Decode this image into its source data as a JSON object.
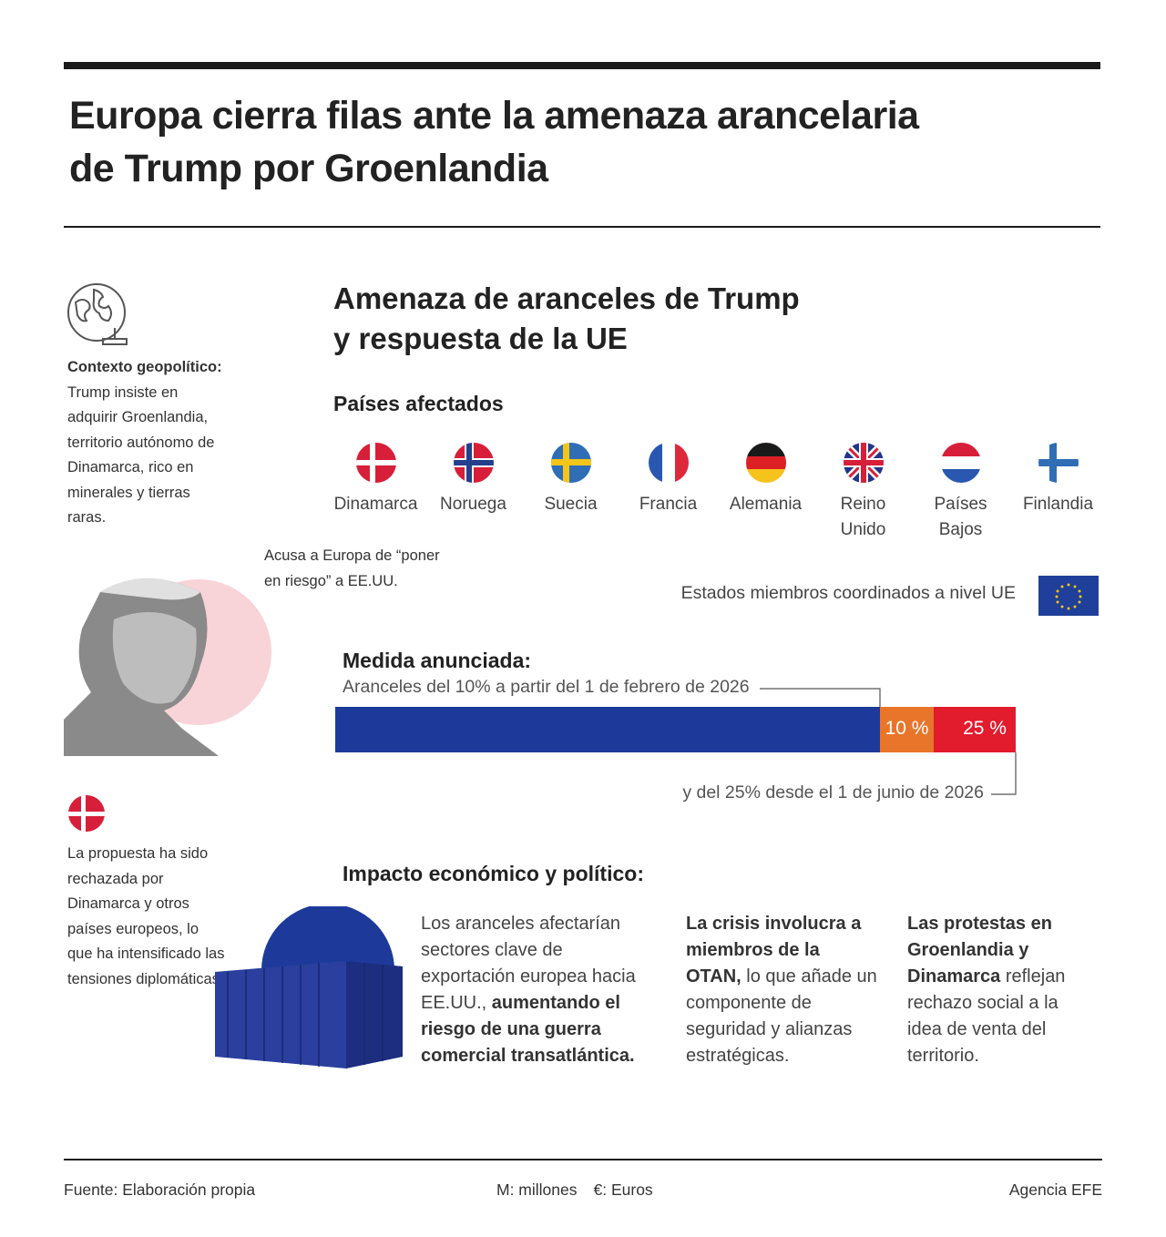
{
  "header": {
    "title_lines": [
      "Europa cierra filas ante la amenaza arancelaria",
      "de Trump por Groenlandia"
    ]
  },
  "sidebar": {
    "context_label": "Contexto geopolítico:",
    "context_text": "Trump insiste en adquirir Groenlandia, territorio autónomo de Dinamarca, rico en minerales y tierras raras.",
    "quote": "Acusa a Europa de “poner en riesgo” a EE.UU.",
    "denmark_text": "La propuesta ha sido rechazada por Dinamarca y otros países europeos, lo que ha intensificado las tensiones diplomáticas."
  },
  "main": {
    "heading_lines": [
      "Amenaza de aranceles de Trump",
      "y respuesta de la UE"
    ],
    "affected_label": "Países afectados",
    "countries": [
      "Dinamarca",
      "Noruega",
      "Suecia",
      "Francia",
      "Alemania",
      "Reino Unido",
      "Países Bajos",
      "Finlandia"
    ],
    "eu_note": "Estados miembros coordinados a nivel UE",
    "measure": {
      "label": "Medida anunciada:",
      "description": "Aranceles del 10% a partir del 1 de febrero de 2026",
      "rates": [
        "10 %",
        "25 %"
      ],
      "second_phase": "y del 25% desde el 1 de junio de 2026"
    },
    "impact": {
      "label": "Impacto económico y político:",
      "items": [
        [
          {
            "text": "Los aranceles afectarían sectores clave de exportación europea hacia EE.UU., ",
            "bold": false
          },
          {
            "text": "aumentando el riesgo de una guerra comercial transatlántica.",
            "bold": true
          }
        ],
        [
          {
            "text": "La crisis involucra a miembros de la OTAN,",
            "bold": true
          },
          {
            "text": " lo que añade un componente de seguridad y alianzas estratégicas.",
            "bold": false
          }
        ],
        [
          {
            "text": "Las protestas en Groenlandia y Dinamarca",
            "bold": true
          },
          {
            "text": " reflejan rechazo social a la idea de venta del territorio.",
            "bold": false
          }
        ]
      ]
    }
  },
  "footer": {
    "source": "Fuente: Elaboración propia",
    "units": [
      "M: millones",
      "€: Euros"
    ],
    "agency": "Agencia EFE"
  }
}
